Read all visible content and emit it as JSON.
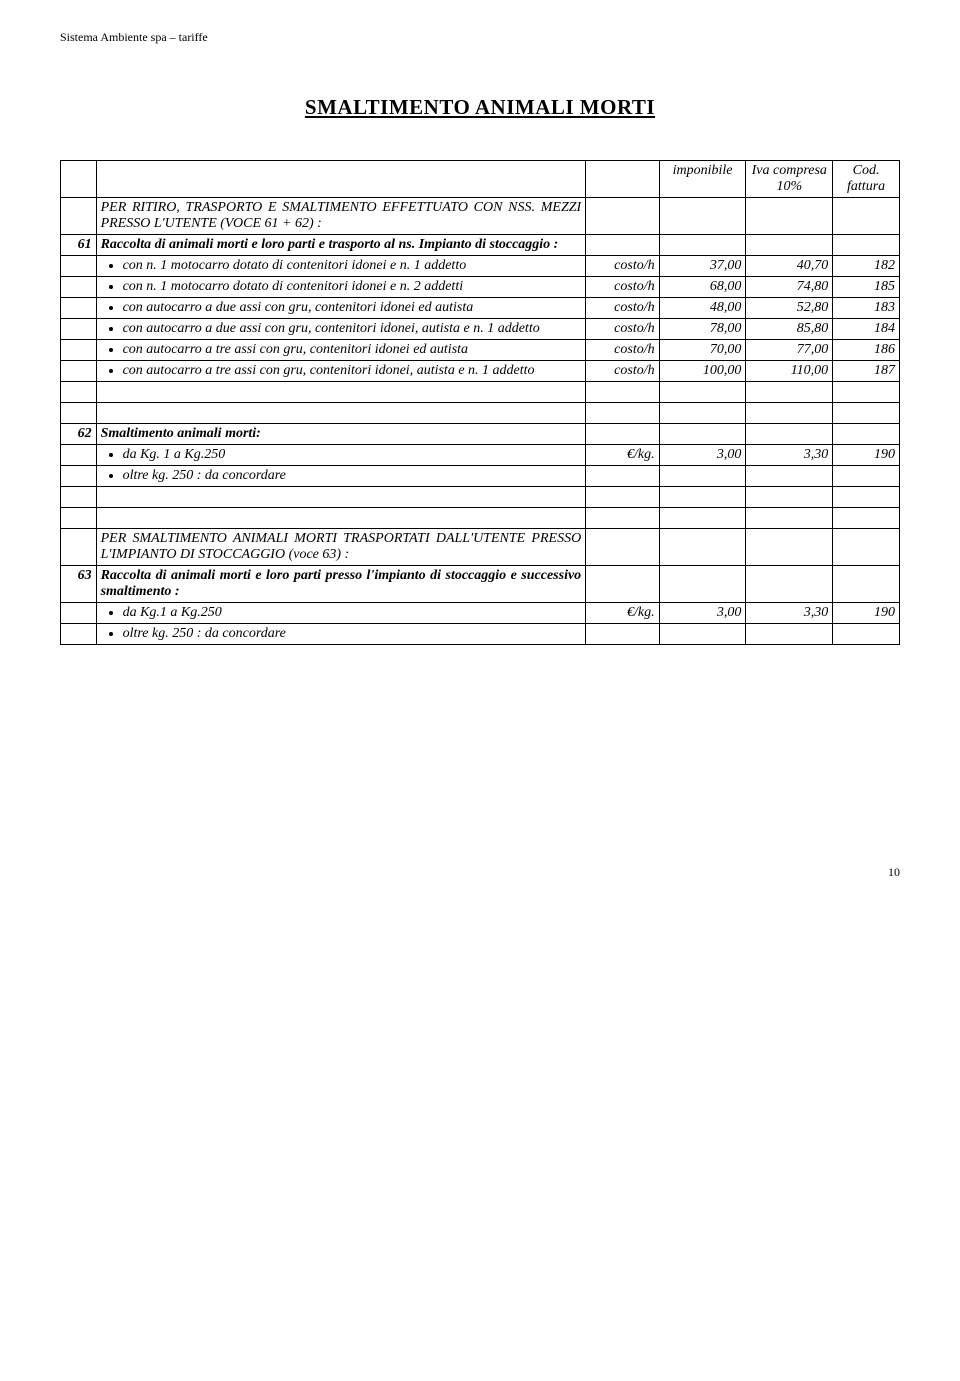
{
  "header_text": "Sistema Ambiente spa – tariffe",
  "section_title": "SMALTIMENTO ANIMALI MORTI",
  "columns": {
    "imponibile": "imponibile",
    "iva": "Iva compresa 10%",
    "cod": "Cod. fattura"
  },
  "block61": {
    "num": "61",
    "intro1": "PER RITIRO, TRASPORTO E SMALTIMENTO EFFETTUATO CON NSS. MEZZI PRESSO L'UTENTE (VOCE 61 + 62) :",
    "intro2": "Raccolta di animali morti e loro parti e trasporto al ns. Impianto di stoccaggio :",
    "rows": [
      {
        "desc": "con n. 1 motocarro dotato di contenitori idonei e n. 1 addetto",
        "unit": "costo/h",
        "imp": "37,00",
        "iva": "40,70",
        "cod": "182"
      },
      {
        "desc": "con n. 1 motocarro dotato di contenitori idonei e n. 2 addetti",
        "unit": "costo/h",
        "imp": "68,00",
        "iva": "74,80",
        "cod": "185"
      },
      {
        "desc": "con autocarro a due assi con gru, contenitori idonei ed autista",
        "unit": "costo/h",
        "imp": "48,00",
        "iva": "52,80",
        "cod": "183"
      },
      {
        "desc": "con autocarro a due assi con gru, contenitori idonei, autista e n. 1 addetto",
        "unit": "costo/h",
        "imp": "78,00",
        "iva": "85,80",
        "cod": "184"
      },
      {
        "desc": "con autocarro a tre assi con gru, contenitori idonei ed autista",
        "unit": "costo/h",
        "imp": "70,00",
        "iva": "77,00",
        "cod": "186"
      },
      {
        "desc": "con autocarro a tre assi con gru, contenitori idonei, autista e n. 1 addetto",
        "unit": "costo/h",
        "imp": "100,00",
        "iva": "110,00",
        "cod": "187"
      }
    ]
  },
  "block62": {
    "num": "62",
    "title": "Smaltimento animali morti:",
    "rows": [
      {
        "desc": "da Kg. 1 a Kg.250",
        "unit": "€/kg.",
        "imp": "3,00",
        "iva": "3,30",
        "cod": "190"
      },
      {
        "desc": "oltre kg. 250 : da concordare",
        "unit": "",
        "imp": "",
        "iva": "",
        "cod": ""
      }
    ]
  },
  "block63": {
    "num": "63",
    "intro1": "PER SMALTIMENTO ANIMALI MORTI TRASPORTATI DALL'UTENTE PRESSO L'IMPIANTO DI STOCCAGGIO (voce 63) :",
    "intro2": "Raccolta di animali morti e loro parti presso l'impianto di stoccaggio e successivo smaltimento :",
    "rows": [
      {
        "desc": "da Kg.1 a Kg.250",
        "unit": "€/kg.",
        "imp": "3,00",
        "iva": "3,30",
        "cod": "190"
      },
      {
        "desc": "oltre kg. 250 : da concordare",
        "unit": "",
        "imp": "",
        "iva": "",
        "cod": ""
      }
    ]
  },
  "page_number": "10"
}
